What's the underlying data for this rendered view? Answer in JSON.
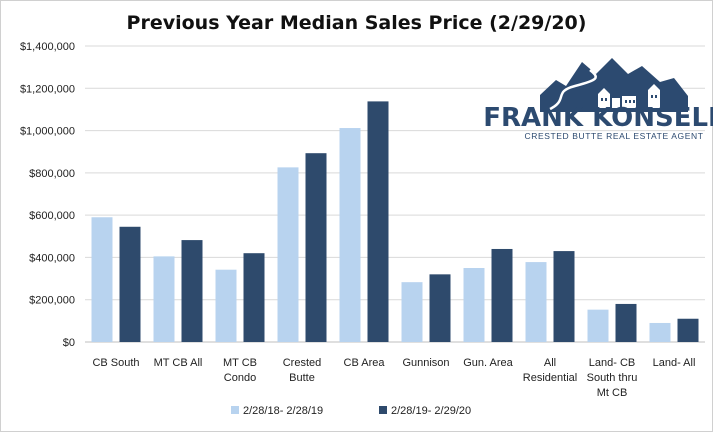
{
  "chart_data": {
    "type": "bar",
    "title": "Previous Year Median Sales Price (2/29/20)",
    "categories": [
      [
        "CB South"
      ],
      [
        "MT CB All"
      ],
      [
        "MT CB",
        "Condo"
      ],
      [
        "Crested",
        "Butte"
      ],
      [
        "CB Area"
      ],
      [
        "Gunnison"
      ],
      [
        "Gun. Area"
      ],
      [
        "All",
        "Residential"
      ],
      [
        "Land- CB",
        "South thru",
        "Mt CB"
      ],
      [
        "Land- All"
      ]
    ],
    "series": [
      {
        "name": "2/28/18- 2/28/19",
        "color": "#b8d3ef",
        "values": [
          590000,
          405000,
          342000,
          826000,
          1012000,
          283000,
          350000,
          378000,
          153000,
          90000
        ]
      },
      {
        "name": "2/28/19- 2/29/20",
        "color": "#2e4a6c",
        "values": [
          545000,
          482000,
          420000,
          893000,
          1138000,
          320000,
          440000,
          430000,
          180000,
          110000
        ]
      }
    ],
    "yticks": [
      "$0",
      "$200,000",
      "$400,000",
      "$600,000",
      "$800,000",
      "$1,000,000",
      "$1,200,000",
      "$1,400,000"
    ],
    "ylim": [
      0,
      1400000
    ],
    "grid": true,
    "legend": "bottom"
  },
  "logo": {
    "name": "FRANK KONSELLA",
    "tagline": "CRESTED BUTTE REAL ESTATE AGENT",
    "color": "#2c4a70"
  }
}
